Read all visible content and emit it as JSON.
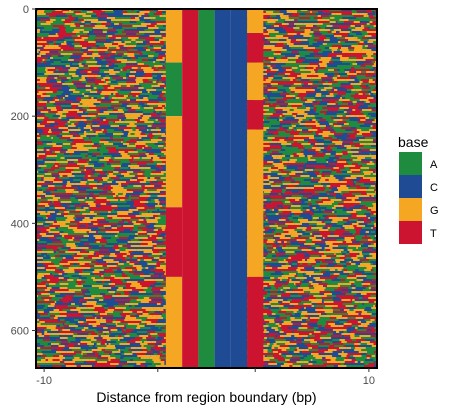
{
  "chart_data": {
    "type": "heatmap",
    "xlabel": "Distance from region boundary (bp)",
    "ylabel": "",
    "x_ticks": [
      "-10",
      "10"
    ],
    "y_ticks": [
      0,
      200,
      400,
      600
    ],
    "xlim": [
      -10.5,
      10.5
    ],
    "ylim": [
      0,
      670
    ],
    "legend": {
      "title": "base",
      "position": "right",
      "entries": [
        {
          "label": "A",
          "color": "#1e8b3e"
        },
        {
          "label": "C",
          "color": "#1e4b94"
        },
        {
          "label": "G",
          "color": "#f5a623"
        },
        {
          "label": "T",
          "color": "#cc1430"
        }
      ]
    },
    "random_region_left": [
      -10,
      -3
    ],
    "random_region_right": [
      3,
      10
    ],
    "fixed_columns": [
      {
        "x": -2,
        "segments": [
          {
            "from": 0,
            "to": 100,
            "base": "G"
          },
          {
            "from": 100,
            "to": 200,
            "base": "A"
          },
          {
            "from": 200,
            "to": 370,
            "base": "G"
          },
          {
            "from": 370,
            "to": 500,
            "base": "T"
          },
          {
            "from": 500,
            "to": 670,
            "base": "G"
          }
        ]
      },
      {
        "x": -1,
        "segments": [
          {
            "from": 0,
            "to": 670,
            "base": "T"
          }
        ]
      },
      {
        "x": 0,
        "segments": [
          {
            "from": 0,
            "to": 670,
            "base": "A"
          }
        ]
      },
      {
        "x": 1,
        "segments": [
          {
            "from": 0,
            "to": 670,
            "base": "C"
          }
        ]
      },
      {
        "x": 2,
        "segments": [
          {
            "from": 0,
            "to": 670,
            "base": "C"
          }
        ]
      },
      {
        "x": 3,
        "segments": [
          {
            "from": 0,
            "to": 45,
            "base": "G"
          },
          {
            "from": 45,
            "to": 100,
            "base": "T"
          },
          {
            "from": 100,
            "to": 170,
            "base": "G"
          },
          {
            "from": 170,
            "to": 225,
            "base": "T"
          },
          {
            "from": 225,
            "to": 500,
            "base": "G"
          },
          {
            "from": 500,
            "to": 670,
            "base": "T"
          }
        ]
      }
    ]
  }
}
